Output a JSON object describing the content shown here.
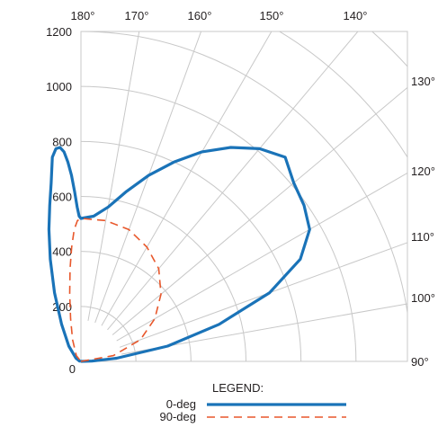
{
  "chart_data": {
    "type": "line",
    "subtype": "polar-candela-distribution",
    "radial_ticks": [
      0,
      200,
      400,
      600,
      800,
      1000,
      1200
    ],
    "radial_max": 1200,
    "angle_ticks_top": [
      "180°",
      "170°",
      "160°",
      "150°",
      "140°"
    ],
    "angle_ticks_right": [
      "130°",
      "120°",
      "110°",
      "100°",
      "90°"
    ],
    "angle_range_deg": [
      90,
      180
    ],
    "grid": true,
    "legend": {
      "title": "LEGEND:",
      "position": "bottom-center"
    },
    "series": [
      {
        "name": "0-deg",
        "color": "#1a73b8",
        "style": "solid",
        "points": [
          {
            "angle": 90,
            "value": 0
          },
          {
            "angle": 92,
            "value": 40
          },
          {
            "angle": 95,
            "value": 130
          },
          {
            "angle": 100,
            "value": 320
          },
          {
            "angle": 105,
            "value": 520
          },
          {
            "angle": 110,
            "value": 730
          },
          {
            "angle": 115,
            "value": 880
          },
          {
            "angle": 120,
            "value": 960
          },
          {
            "angle": 125,
            "value": 990
          },
          {
            "angle": 130,
            "value": 1010
          },
          {
            "angle": 135,
            "value": 1050
          },
          {
            "angle": 140,
            "value": 1010
          },
          {
            "angle": 145,
            "value": 950
          },
          {
            "angle": 150,
            "value": 880
          },
          {
            "angle": 155,
            "value": 800
          },
          {
            "angle": 160,
            "value": 720
          },
          {
            "angle": 165,
            "value": 640
          },
          {
            "angle": 170,
            "value": 570
          },
          {
            "angle": 175,
            "value": 530
          },
          {
            "angle": 180,
            "value": 520
          }
        ]
      },
      {
        "name": "90-deg",
        "color": "#e8572b",
        "style": "dashed",
        "points": [
          {
            "angle": 90,
            "value": 0
          },
          {
            "angle": 100,
            "value": 120
          },
          {
            "angle": 110,
            "value": 230
          },
          {
            "angle": 120,
            "value": 310
          },
          {
            "angle": 130,
            "value": 380
          },
          {
            "angle": 140,
            "value": 440
          },
          {
            "angle": 150,
            "value": 480
          },
          {
            "angle": 160,
            "value": 510
          },
          {
            "angle": 170,
            "value": 520
          },
          {
            "angle": 180,
            "value": 520
          }
        ]
      }
    ]
  }
}
